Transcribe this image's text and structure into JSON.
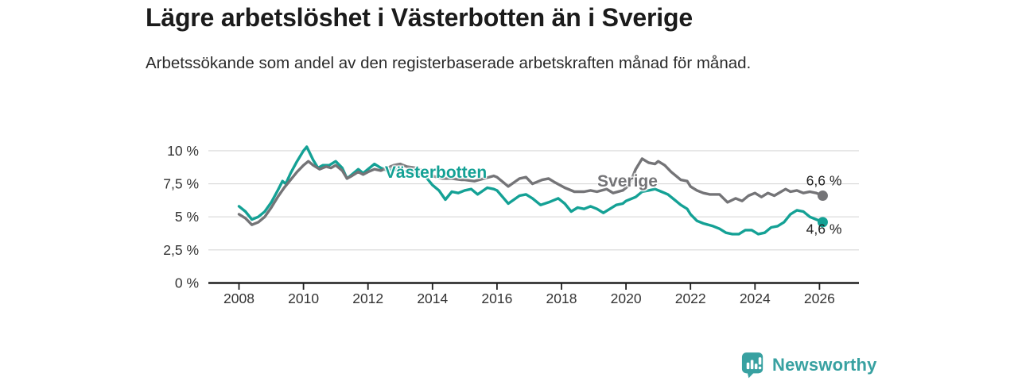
{
  "header": {
    "title": "Lägre arbetslöshet i Västerbotten än i Sverige",
    "subtitle": "Arbetssökande som andel av den registerbaserade arbetskraften månad för månad."
  },
  "colors": {
    "vasterbotten": "#14a195",
    "sverige": "#747477",
    "grid": "#d8d8d8",
    "axis": "#1f1f1f",
    "tick_text": "#333333",
    "brand_teal": "#38a1a1"
  },
  "chart_data": {
    "type": "line",
    "title": "Lägre arbetslöshet i Västerbotten än i Sverige",
    "subtitle": "Arbetssökande som andel av den registerbaserade arbetskraften månad för månad.",
    "xlabel": "",
    "ylabel": "",
    "unit": "%",
    "grid": true,
    "legend_position": "inline-on-lines",
    "x_ticks": [
      2008,
      2010,
      2012,
      2014,
      2016,
      2018,
      2020,
      2022,
      2024,
      2026
    ],
    "y_ticks": [
      0,
      2.5,
      5,
      7.5,
      10
    ],
    "y_tick_labels": [
      "0 %",
      "2,5 %",
      "5 %",
      "7,5 %",
      "10 %"
    ],
    "ylim": [
      0,
      10.8
    ],
    "xlim": [
      2007.1,
      2027.2
    ],
    "series": [
      {
        "name": "Västerbotten",
        "color": "#14a195",
        "end_label": "4,6 %",
        "end_value": 4.6,
        "points": [
          [
            2008.0,
            5.8
          ],
          [
            2008.2,
            5.4
          ],
          [
            2008.4,
            4.8
          ],
          [
            2008.6,
            5.0
          ],
          [
            2008.8,
            5.4
          ],
          [
            2009.0,
            6.1
          ],
          [
            2009.2,
            7.0
          ],
          [
            2009.35,
            7.7
          ],
          [
            2009.45,
            7.5
          ],
          [
            2009.6,
            8.3
          ],
          [
            2009.8,
            9.2
          ],
          [
            2010.0,
            10.0
          ],
          [
            2010.1,
            10.3
          ],
          [
            2010.3,
            9.3
          ],
          [
            2010.45,
            8.7
          ],
          [
            2010.6,
            8.9
          ],
          [
            2010.8,
            8.9
          ],
          [
            2011.0,
            9.2
          ],
          [
            2011.2,
            8.7
          ],
          [
            2011.35,
            7.9
          ],
          [
            2011.5,
            8.2
          ],
          [
            2011.7,
            8.6
          ],
          [
            2011.85,
            8.3
          ],
          [
            2012.0,
            8.6
          ],
          [
            2012.2,
            9.0
          ],
          [
            2012.4,
            8.7
          ],
          [
            2012.6,
            8.5
          ],
          [
            2012.8,
            8.6
          ],
          [
            2013.0,
            8.5
          ],
          [
            2013.3,
            8.4
          ],
          [
            2013.6,
            8.2
          ],
          [
            2013.8,
            8.0
          ],
          [
            2014.0,
            7.4
          ],
          [
            2014.2,
            7.0
          ],
          [
            2014.4,
            6.3
          ],
          [
            2014.6,
            6.9
          ],
          [
            2014.8,
            6.8
          ],
          [
            2015.0,
            7.0
          ],
          [
            2015.2,
            7.1
          ],
          [
            2015.4,
            6.7
          ],
          [
            2015.7,
            7.2
          ],
          [
            2015.9,
            7.1
          ],
          [
            2016.0,
            7.0
          ],
          [
            2016.35,
            6.0
          ],
          [
            2016.7,
            6.6
          ],
          [
            2016.9,
            6.7
          ],
          [
            2017.1,
            6.4
          ],
          [
            2017.35,
            5.9
          ],
          [
            2017.6,
            6.1
          ],
          [
            2017.9,
            6.4
          ],
          [
            2018.1,
            6.0
          ],
          [
            2018.3,
            5.4
          ],
          [
            2018.5,
            5.7
          ],
          [
            2018.7,
            5.6
          ],
          [
            2018.9,
            5.8
          ],
          [
            2019.1,
            5.6
          ],
          [
            2019.3,
            5.3
          ],
          [
            2019.5,
            5.6
          ],
          [
            2019.7,
            5.9
          ],
          [
            2019.9,
            6.0
          ],
          [
            2020.0,
            6.2
          ],
          [
            2020.3,
            6.5
          ],
          [
            2020.5,
            6.9
          ],
          [
            2020.7,
            7.0
          ],
          [
            2020.9,
            7.1
          ],
          [
            2021.1,
            6.9
          ],
          [
            2021.3,
            6.7
          ],
          [
            2021.5,
            6.3
          ],
          [
            2021.7,
            5.9
          ],
          [
            2021.9,
            5.6
          ],
          [
            2022.0,
            5.2
          ],
          [
            2022.2,
            4.7
          ],
          [
            2022.4,
            4.5
          ],
          [
            2022.7,
            4.3
          ],
          [
            2022.9,
            4.1
          ],
          [
            2023.1,
            3.8
          ],
          [
            2023.3,
            3.7
          ],
          [
            2023.5,
            3.7
          ],
          [
            2023.7,
            4.0
          ],
          [
            2023.9,
            4.0
          ],
          [
            2024.1,
            3.7
          ],
          [
            2024.3,
            3.8
          ],
          [
            2024.5,
            4.2
          ],
          [
            2024.7,
            4.3
          ],
          [
            2024.9,
            4.6
          ],
          [
            2025.1,
            5.2
          ],
          [
            2025.3,
            5.5
          ],
          [
            2025.5,
            5.4
          ],
          [
            2025.7,
            5.0
          ],
          [
            2025.9,
            4.8
          ],
          [
            2026.1,
            4.6
          ]
        ]
      },
      {
        "name": "Sverige",
        "color": "#747477",
        "end_label": "6,6 %",
        "end_value": 6.6,
        "points": [
          [
            2008.0,
            5.2
          ],
          [
            2008.2,
            4.9
          ],
          [
            2008.4,
            4.4
          ],
          [
            2008.6,
            4.6
          ],
          [
            2008.8,
            5.0
          ],
          [
            2009.0,
            5.7
          ],
          [
            2009.2,
            6.5
          ],
          [
            2009.4,
            7.2
          ],
          [
            2009.6,
            7.8
          ],
          [
            2009.8,
            8.4
          ],
          [
            2010.0,
            8.9
          ],
          [
            2010.15,
            9.2
          ],
          [
            2010.3,
            8.9
          ],
          [
            2010.5,
            8.6
          ],
          [
            2010.7,
            8.8
          ],
          [
            2010.85,
            8.7
          ],
          [
            2011.0,
            8.9
          ],
          [
            2011.2,
            8.5
          ],
          [
            2011.35,
            7.9
          ],
          [
            2011.5,
            8.1
          ],
          [
            2011.7,
            8.4
          ],
          [
            2011.85,
            8.2
          ],
          [
            2012.0,
            8.4
          ],
          [
            2012.2,
            8.6
          ],
          [
            2012.4,
            8.5
          ],
          [
            2012.6,
            8.7
          ],
          [
            2012.8,
            8.9
          ],
          [
            2013.0,
            9.0
          ],
          [
            2013.2,
            8.8
          ],
          [
            2013.5,
            8.7
          ],
          [
            2013.8,
            8.4
          ],
          [
            2014.0,
            8.1
          ],
          [
            2014.3,
            7.9
          ],
          [
            2014.6,
            7.9
          ],
          [
            2014.9,
            7.8
          ],
          [
            2015.0,
            7.8
          ],
          [
            2015.3,
            7.7
          ],
          [
            2015.6,
            7.9
          ],
          [
            2015.9,
            8.1
          ],
          [
            2016.0,
            8.0
          ],
          [
            2016.35,
            7.3
          ],
          [
            2016.7,
            7.9
          ],
          [
            2016.9,
            8.0
          ],
          [
            2017.1,
            7.5
          ],
          [
            2017.4,
            7.8
          ],
          [
            2017.6,
            7.9
          ],
          [
            2017.8,
            7.6
          ],
          [
            2018.1,
            7.2
          ],
          [
            2018.4,
            6.9
          ],
          [
            2018.7,
            6.9
          ],
          [
            2018.9,
            7.0
          ],
          [
            2019.1,
            6.9
          ],
          [
            2019.4,
            7.1
          ],
          [
            2019.6,
            6.8
          ],
          [
            2019.9,
            7.0
          ],
          [
            2020.1,
            7.4
          ],
          [
            2020.3,
            8.6
          ],
          [
            2020.5,
            9.4
          ],
          [
            2020.7,
            9.1
          ],
          [
            2020.9,
            9.0
          ],
          [
            2021.0,
            9.2
          ],
          [
            2021.2,
            8.9
          ],
          [
            2021.4,
            8.4
          ],
          [
            2021.7,
            7.8
          ],
          [
            2021.9,
            7.7
          ],
          [
            2022.0,
            7.3
          ],
          [
            2022.2,
            7.0
          ],
          [
            2022.4,
            6.8
          ],
          [
            2022.6,
            6.7
          ],
          [
            2022.9,
            6.7
          ],
          [
            2023.15,
            6.1
          ],
          [
            2023.4,
            6.4
          ],
          [
            2023.6,
            6.2
          ],
          [
            2023.8,
            6.6
          ],
          [
            2024.0,
            6.8
          ],
          [
            2024.2,
            6.5
          ],
          [
            2024.4,
            6.8
          ],
          [
            2024.6,
            6.6
          ],
          [
            2024.95,
            7.1
          ],
          [
            2025.1,
            6.9
          ],
          [
            2025.3,
            7.0
          ],
          [
            2025.5,
            6.8
          ],
          [
            2025.7,
            6.9
          ],
          [
            2025.9,
            6.8
          ],
          [
            2026.1,
            6.6
          ]
        ]
      }
    ]
  },
  "footer": {
    "brand": "Newsworthy",
    "logo_icon": "bar-chart-speech-bubble"
  }
}
